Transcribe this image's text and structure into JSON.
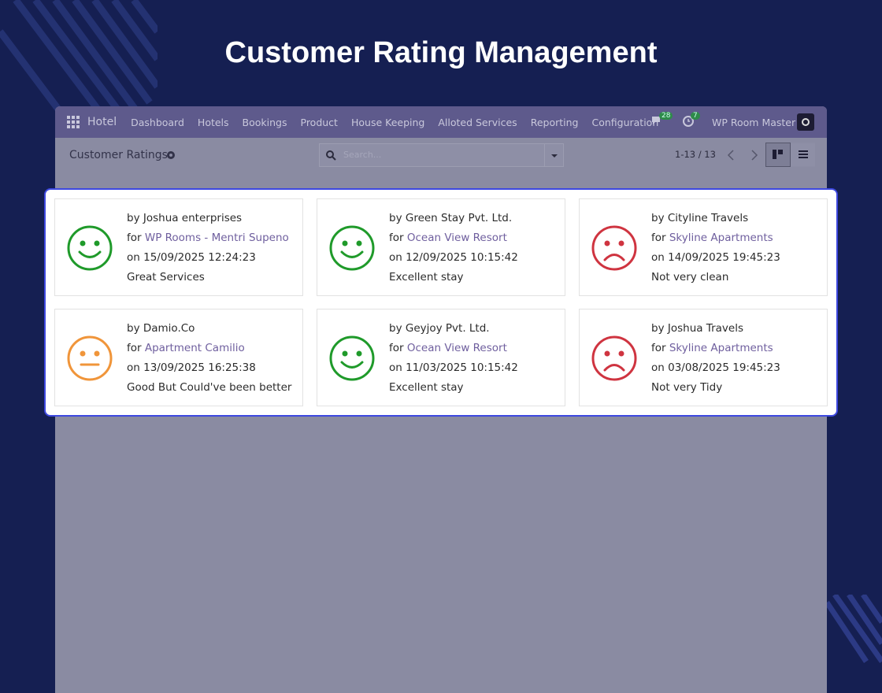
{
  "title": "Customer Rating Management",
  "navbar": {
    "app": "Hotel",
    "menu": [
      "Dashboard",
      "Hotels",
      "Bookings",
      "Product",
      "House Keeping",
      "Alloted Services",
      "Reporting",
      "Configuration"
    ],
    "messages": 28,
    "activities": 7,
    "company": "WP Room Master"
  },
  "control_panel": {
    "breadcrumb": "Customer Ratings",
    "search_placeholder": "Search...",
    "pager": "1-13 / 13"
  },
  "labels": {
    "by": "by",
    "for": "for",
    "on": "on"
  },
  "rating_colors": {
    "satisfied": "#1f9a2a",
    "okay": "#f0953a",
    "dissatisfied": "#cf3440"
  },
  "cards": [
    {
      "rating": "satisfied",
      "by": "Joshua enterprises",
      "for": "WP Rooms - Mentri Supeno",
      "on": "15/09/2025 12:24:23",
      "comment": "Great Services"
    },
    {
      "rating": "satisfied",
      "by": "Green Stay Pvt. Ltd.",
      "for": "Ocean View Resort",
      "on": "12/09/2025 10:15:42",
      "comment": "Excellent stay"
    },
    {
      "rating": "dissatisfied",
      "by": "Cityline Travels",
      "for": "Skyline Apartments",
      "on": "14/09/2025 19:45:23",
      "comment": "Not very clean"
    },
    {
      "rating": "okay",
      "by": "Damio.Co",
      "for": "Apartment Camilio",
      "on": "13/09/2025 16:25:38",
      "comment": "Good But Could've been better"
    },
    {
      "rating": "satisfied",
      "by": "Geyjoy Pvt. Ltd.",
      "for": "Ocean View Resort",
      "on": "11/03/2025 10:15:42",
      "comment": "Excellent stay"
    },
    {
      "rating": "dissatisfied",
      "by": "Joshua Travels",
      "for": "Skyline Apartments",
      "on": "03/08/2025 19:45:23",
      "comment": "Not very Tidy"
    }
  ]
}
